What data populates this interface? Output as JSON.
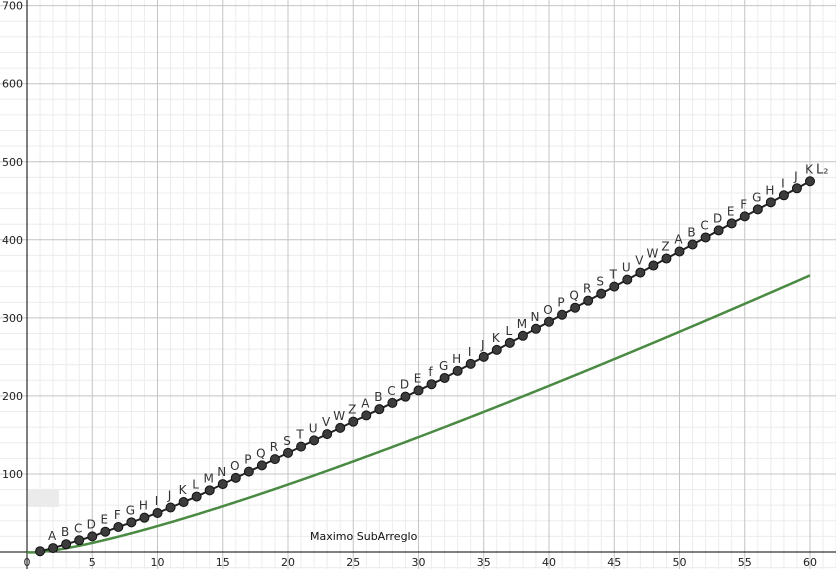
{
  "colors": {
    "curve": "#4a8a42",
    "points": "#3c3c3c",
    "line": "#222222",
    "grid_major": "#c4c4c4",
    "grid_minor": "#ececec"
  },
  "annotation": "Maximo SubArreglo",
  "chart_data": {
    "type": "line",
    "title": "",
    "xlabel": "",
    "ylabel": "",
    "xlim": [
      0,
      62
    ],
    "ylim": [
      0,
      700
    ],
    "x_ticks": [
      0,
      5,
      10,
      15,
      20,
      25,
      30,
      35,
      40,
      45,
      50,
      55,
      60
    ],
    "y_ticks": [
      100,
      200,
      300,
      400,
      500,
      600,
      700
    ],
    "grid": true,
    "series": [
      {
        "name": "",
        "kind": "function",
        "formula": "n*log2(n)",
        "color": "#4a8a42",
        "x_range": [
          0,
          60
        ]
      },
      {
        "name": "L₂",
        "kind": "points",
        "color": "#3c3c3c",
        "x": [
          1,
          2,
          3,
          4,
          5,
          6,
          7,
          8,
          9,
          10,
          11,
          12,
          13,
          14,
          15,
          16,
          17,
          18,
          19,
          20,
          21,
          22,
          23,
          24,
          25,
          26,
          27,
          28,
          29,
          30,
          31,
          32,
          33,
          34,
          35,
          36,
          37,
          38,
          39,
          40,
          41,
          42,
          43,
          44,
          45,
          46,
          47,
          48,
          49,
          50,
          51,
          52,
          53,
          54,
          55,
          56,
          57,
          58,
          59,
          60
        ],
        "y": [
          1,
          5,
          10,
          15,
          20,
          26,
          32,
          38,
          44,
          50,
          57,
          64,
          71,
          79,
          87,
          95,
          103,
          111,
          119,
          127,
          135,
          143,
          151,
          159,
          167,
          175,
          183,
          191,
          199,
          207,
          215,
          223,
          232,
          241,
          250,
          259,
          268,
          277,
          286,
          295,
          304,
          313,
          322,
          331,
          340,
          349,
          358,
          367,
          376,
          385,
          394,
          403,
          412,
          421,
          430,
          439,
          448,
          457,
          466,
          475
        ],
        "labels": [
          "",
          "A",
          "B",
          "C",
          "D",
          "E",
          "F",
          "G",
          "H",
          "I",
          "J",
          "K",
          "L",
          "M",
          "N",
          "O",
          "P",
          "Q",
          "R",
          "S",
          "T",
          "U",
          "V",
          "W",
          "Z",
          "A",
          "B",
          "C",
          "D",
          "E",
          "f",
          "G",
          "H",
          "I",
          "J",
          "K",
          "L",
          "M",
          "N",
          "O",
          "P",
          "Q",
          "R",
          "S",
          "T",
          "U",
          "V",
          "W",
          "Z",
          "A",
          "B",
          "C",
          "D",
          "E",
          "F",
          "G",
          "H",
          "I",
          "J",
          "K"
        ]
      }
    ]
  }
}
